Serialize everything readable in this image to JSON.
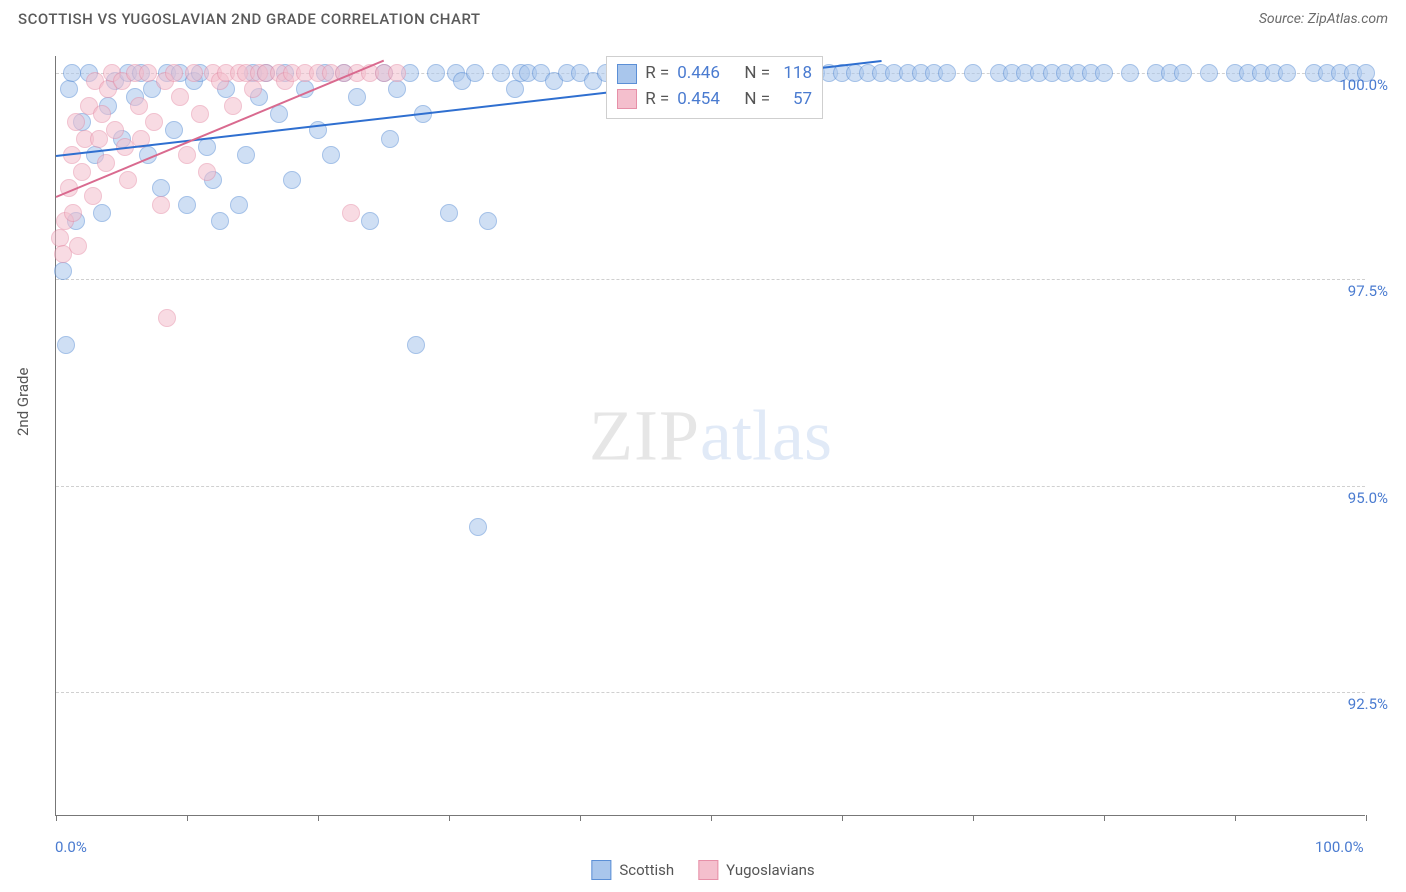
{
  "header": {
    "title": "SCOTTISH VS YUGOSLAVIAN 2ND GRADE CORRELATION CHART",
    "source": "Source: ZipAtlas.com"
  },
  "watermark": {
    "zip": "ZIP",
    "atlas": "atlas"
  },
  "chart": {
    "type": "scatter",
    "ylabel": "2nd Grade",
    "xlim": [
      0,
      100
    ],
    "ylim": [
      91,
      100.2
    ],
    "xtick_positions": [
      0,
      10,
      20,
      30,
      40,
      50,
      60,
      70,
      80,
      90,
      100
    ],
    "xtick_labels_shown": {
      "0": "0.0%",
      "100": "100.0%"
    },
    "ytick_positions": [
      92.5,
      95.0,
      97.5,
      100.0
    ],
    "ytick_labels": [
      "92.5%",
      "95.0%",
      "97.5%",
      "100.0%"
    ],
    "grid_color": "#d0d0d0",
    "axis_color": "#777777",
    "background_color": "#ffffff",
    "label_color": "#4a7bd0",
    "ylabel_color": "#555555",
    "marker_radius": 9,
    "marker_opacity": 0.55,
    "series": [
      {
        "name": "Scottish",
        "fill": "#a9c6ec",
        "stroke": "#5b8fd6",
        "trend": {
          "x1": 0,
          "y1": 99.0,
          "x2": 63,
          "y2": 100.15,
          "color": "#2f6fd0",
          "width": 2
        },
        "stats": {
          "R": "0.446",
          "N": "118"
        },
        "points": [
          [
            0.5,
            97.6
          ],
          [
            0.8,
            96.7
          ],
          [
            1.0,
            99.8
          ],
          [
            1.2,
            100.0
          ],
          [
            1.5,
            98.2
          ],
          [
            2.0,
            99.4
          ],
          [
            2.5,
            100.0
          ],
          [
            3.0,
            99.0
          ],
          [
            3.5,
            98.3
          ],
          [
            4.0,
            99.6
          ],
          [
            4.5,
            99.9
          ],
          [
            5.0,
            99.2
          ],
          [
            5.5,
            100.0
          ],
          [
            6.0,
            99.7
          ],
          [
            6.5,
            100.0
          ],
          [
            7.0,
            99.0
          ],
          [
            7.3,
            99.8
          ],
          [
            8.0,
            98.6
          ],
          [
            8.5,
            100.0
          ],
          [
            9.0,
            99.3
          ],
          [
            9.5,
            100.0
          ],
          [
            10.0,
            98.4
          ],
          [
            10.5,
            99.9
          ],
          [
            11.0,
            100.0
          ],
          [
            11.5,
            99.1
          ],
          [
            12.0,
            98.7
          ],
          [
            12.5,
            98.2
          ],
          [
            13.0,
            99.8
          ],
          [
            14.0,
            98.4
          ],
          [
            14.5,
            99.0
          ],
          [
            15.0,
            100.0
          ],
          [
            15.5,
            99.7
          ],
          [
            16.0,
            100.0
          ],
          [
            17.0,
            99.5
          ],
          [
            17.5,
            100.0
          ],
          [
            18.0,
            98.7
          ],
          [
            19.0,
            99.8
          ],
          [
            20.0,
            99.3
          ],
          [
            20.5,
            100.0
          ],
          [
            21.0,
            99.0
          ],
          [
            22.0,
            100.0
          ],
          [
            23.0,
            99.7
          ],
          [
            24.0,
            98.2
          ],
          [
            25.0,
            100.0
          ],
          [
            25.5,
            99.2
          ],
          [
            26.0,
            99.8
          ],
          [
            27.0,
            100.0
          ],
          [
            27.5,
            96.7
          ],
          [
            28.0,
            99.5
          ],
          [
            29.0,
            100.0
          ],
          [
            30.0,
            98.3
          ],
          [
            30.5,
            100.0
          ],
          [
            31.0,
            99.9
          ],
          [
            32.0,
            100.0
          ],
          [
            32.2,
            94.5
          ],
          [
            33.0,
            98.2
          ],
          [
            34.0,
            100.0
          ],
          [
            35.0,
            99.8
          ],
          [
            35.5,
            100.0
          ],
          [
            36.0,
            100.0
          ],
          [
            37.0,
            100.0
          ],
          [
            38.0,
            99.9
          ],
          [
            39.0,
            100.0
          ],
          [
            40.0,
            100.0
          ],
          [
            41.0,
            99.9
          ],
          [
            42.0,
            100.0
          ],
          [
            43.0,
            100.0
          ],
          [
            43.5,
            100.0
          ],
          [
            44.0,
            100.0
          ],
          [
            45.0,
            99.9
          ],
          [
            46.0,
            100.0
          ],
          [
            47.0,
            100.0
          ],
          [
            48.0,
            100.0
          ],
          [
            49.0,
            100.0
          ],
          [
            50.0,
            100.0
          ],
          [
            51.0,
            100.0
          ],
          [
            52.0,
            100.0
          ],
          [
            53.0,
            100.0
          ],
          [
            54.0,
            100.0
          ],
          [
            55.0,
            100.0
          ],
          [
            56.0,
            100.0
          ],
          [
            57.0,
            100.0
          ],
          [
            58.0,
            100.0
          ],
          [
            59.0,
            100.0
          ],
          [
            60.0,
            100.0
          ],
          [
            61.0,
            100.0
          ],
          [
            62.0,
            100.0
          ],
          [
            63.0,
            100.0
          ],
          [
            64.0,
            100.0
          ],
          [
            65.0,
            100.0
          ],
          [
            66.0,
            100.0
          ],
          [
            67.0,
            100.0
          ],
          [
            68.0,
            100.0
          ],
          [
            70.0,
            100.0
          ],
          [
            72.0,
            100.0
          ],
          [
            73.0,
            100.0
          ],
          [
            74.0,
            100.0
          ],
          [
            75.0,
            100.0
          ],
          [
            76.0,
            100.0
          ],
          [
            77.0,
            100.0
          ],
          [
            78.0,
            100.0
          ],
          [
            79.0,
            100.0
          ],
          [
            80.0,
            100.0
          ],
          [
            82.0,
            100.0
          ],
          [
            84.0,
            100.0
          ],
          [
            85.0,
            100.0
          ],
          [
            86.0,
            100.0
          ],
          [
            88.0,
            100.0
          ],
          [
            90.0,
            100.0
          ],
          [
            91.0,
            100.0
          ],
          [
            92.0,
            100.0
          ],
          [
            93.0,
            100.0
          ],
          [
            94.0,
            100.0
          ],
          [
            96.0,
            100.0
          ],
          [
            97.0,
            100.0
          ],
          [
            98.0,
            100.0
          ],
          [
            99.0,
            100.0
          ],
          [
            100.0,
            100.0
          ]
        ]
      },
      {
        "name": "Yugoslavians",
        "fill": "#f4bfcd",
        "stroke": "#e690a8",
        "trend": {
          "x1": 0,
          "y1": 98.5,
          "x2": 25,
          "y2": 100.15,
          "color": "#d96a8f",
          "width": 2
        },
        "stats": {
          "R": "0.454",
          "N": "57"
        },
        "points": [
          [
            0.3,
            98.0
          ],
          [
            0.5,
            97.8
          ],
          [
            0.7,
            98.2
          ],
          [
            1.0,
            98.6
          ],
          [
            1.2,
            99.0
          ],
          [
            1.3,
            98.3
          ],
          [
            1.5,
            99.4
          ],
          [
            1.7,
            97.9
          ],
          [
            2.0,
            98.8
          ],
          [
            2.2,
            99.2
          ],
          [
            2.5,
            99.6
          ],
          [
            2.8,
            98.5
          ],
          [
            3.0,
            99.9
          ],
          [
            3.3,
            99.2
          ],
          [
            3.5,
            99.5
          ],
          [
            3.8,
            98.9
          ],
          [
            4.0,
            99.8
          ],
          [
            4.3,
            100.0
          ],
          [
            4.5,
            99.3
          ],
          [
            5.0,
            99.9
          ],
          [
            5.3,
            99.1
          ],
          [
            5.5,
            98.7
          ],
          [
            6.0,
            100.0
          ],
          [
            6.3,
            99.6
          ],
          [
            6.5,
            99.2
          ],
          [
            7.0,
            100.0
          ],
          [
            7.5,
            99.4
          ],
          [
            8.0,
            98.4
          ],
          [
            8.3,
            99.9
          ],
          [
            8.5,
            97.03
          ],
          [
            9.0,
            100.0
          ],
          [
            9.5,
            99.7
          ],
          [
            10.0,
            99.0
          ],
          [
            10.5,
            100.0
          ],
          [
            11.0,
            99.5
          ],
          [
            11.5,
            98.8
          ],
          [
            12.0,
            100.0
          ],
          [
            12.5,
            99.9
          ],
          [
            13.0,
            100.0
          ],
          [
            13.5,
            99.6
          ],
          [
            14.0,
            100.0
          ],
          [
            14.5,
            100.0
          ],
          [
            15.0,
            99.8
          ],
          [
            15.5,
            100.0
          ],
          [
            16.0,
            100.0
          ],
          [
            17.0,
            100.0
          ],
          [
            17.5,
            99.9
          ],
          [
            18.0,
            100.0
          ],
          [
            19.0,
            100.0
          ],
          [
            20.0,
            100.0
          ],
          [
            21.0,
            100.0
          ],
          [
            22.0,
            100.0
          ],
          [
            22.5,
            98.3
          ],
          [
            23.0,
            100.0
          ],
          [
            24.0,
            100.0
          ],
          [
            25.0,
            100.0
          ],
          [
            26.0,
            100.0
          ]
        ]
      }
    ]
  },
  "stats_box": {
    "r_label": "R =",
    "n_label": "N ="
  },
  "legend": {
    "items": [
      {
        "label": "Scottish",
        "fill": "#a9c6ec",
        "stroke": "#5b8fd6"
      },
      {
        "label": "Yugoslavians",
        "fill": "#f4bfcd",
        "stroke": "#e690a8"
      }
    ]
  }
}
